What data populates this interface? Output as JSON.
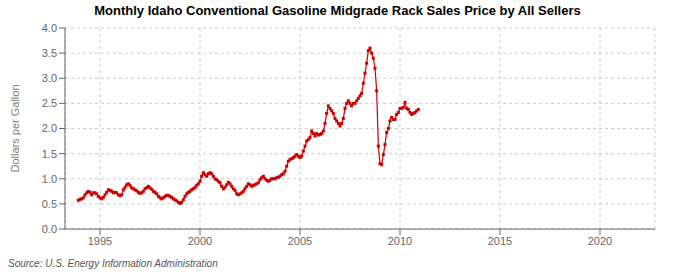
{
  "chart_data": {
    "type": "line",
    "title": "Monthly Idaho Conventional Gasoline Midgrade Rack Sales Price by All Sellers",
    "ylabel": "Dollars per Gallon",
    "annotations": [
      "Source: U.S. Energy Information Administration"
    ],
    "color": "#cc0000",
    "marker": "square",
    "grid": true,
    "xlim": [
      1993.25,
      2022.75
    ],
    "xticks": [
      1995,
      2000,
      2005,
      2010,
      2015,
      2020
    ],
    "ylim": [
      0.0,
      4.0
    ],
    "yticks": [
      {
        "value": 0.0,
        "label": "0.0"
      },
      0.5,
      {
        "value": 1.0,
        "label": "1.0"
      },
      1.5,
      {
        "value": 2.0,
        "label": "2.0"
      },
      2.5,
      {
        "value": 3.0,
        "label": "3.0"
      },
      3.5,
      {
        "value": 4.0,
        "label": "4.0"
      }
    ],
    "x": [
      1993.917,
      1994.0,
      1994.083,
      1994.167,
      1994.25,
      1994.333,
      1994.417,
      1994.5,
      1994.583,
      1994.667,
      1994.75,
      1994.833,
      1994.917,
      1995.0,
      1995.083,
      1995.167,
      1995.25,
      1995.333,
      1995.417,
      1995.5,
      1995.583,
      1995.667,
      1995.75,
      1995.833,
      1995.917,
      1996.0,
      1996.083,
      1996.167,
      1996.25,
      1996.333,
      1996.417,
      1996.5,
      1996.583,
      1996.667,
      1996.75,
      1996.833,
      1996.917,
      1997.0,
      1997.083,
      1997.167,
      1997.25,
      1997.333,
      1997.417,
      1997.5,
      1997.583,
      1997.667,
      1997.75,
      1997.833,
      1997.917,
      1998.0,
      1998.083,
      1998.167,
      1998.25,
      1998.333,
      1998.417,
      1998.5,
      1998.583,
      1998.667,
      1998.75,
      1998.833,
      1998.917,
      1999.0,
      1999.083,
      1999.167,
      1999.25,
      1999.333,
      1999.417,
      1999.5,
      1999.583,
      1999.667,
      1999.75,
      1999.833,
      1999.917,
      2000.0,
      2000.083,
      2000.167,
      2000.25,
      2000.333,
      2000.417,
      2000.5,
      2000.583,
      2000.667,
      2000.75,
      2000.833,
      2000.917,
      2001.0,
      2001.083,
      2001.167,
      2001.25,
      2001.333,
      2001.417,
      2001.5,
      2001.583,
      2001.667,
      2001.75,
      2001.833,
      2001.917,
      2002.0,
      2002.083,
      2002.167,
      2002.25,
      2002.333,
      2002.417,
      2002.5,
      2002.583,
      2002.667,
      2002.75,
      2002.833,
      2002.917,
      2003.0,
      2003.083,
      2003.167,
      2003.25,
      2003.333,
      2003.417,
      2003.5,
      2003.583,
      2003.667,
      2003.75,
      2003.833,
      2003.917,
      2004.0,
      2004.083,
      2004.167,
      2004.25,
      2004.333,
      2004.417,
      2004.5,
      2004.583,
      2004.667,
      2004.75,
      2004.833,
      2004.917,
      2005.0,
      2005.083,
      2005.167,
      2005.25,
      2005.333,
      2005.417,
      2005.5,
      2005.583,
      2005.667,
      2005.75,
      2005.833,
      2005.917,
      2006.0,
      2006.083,
      2006.167,
      2006.25,
      2006.333,
      2006.417,
      2006.5,
      2006.583,
      2006.667,
      2006.75,
      2006.833,
      2006.917,
      2007.0,
      2007.083,
      2007.167,
      2007.25,
      2007.333,
      2007.417,
      2007.5,
      2007.583,
      2007.667,
      2007.75,
      2007.833,
      2007.917,
      2008.0,
      2008.083,
      2008.167,
      2008.25,
      2008.333,
      2008.417,
      2008.5,
      2008.583,
      2008.667,
      2008.75,
      2008.833,
      2008.917,
      2009.0,
      2009.083,
      2009.167,
      2009.25,
      2009.333,
      2009.417,
      2009.5,
      2009.583,
      2009.667,
      2009.75,
      2009.833,
      2009.917,
      2010.0,
      2010.083,
      2010.167,
      2010.25,
      2010.333,
      2010.417,
      2010.5,
      2010.583,
      2010.667,
      2010.75,
      2010.833,
      2010.917
    ],
    "values": [
      0.57,
      0.59,
      0.6,
      0.62,
      0.68,
      0.72,
      0.75,
      0.73,
      0.68,
      0.72,
      0.72,
      0.7,
      0.65,
      0.62,
      0.6,
      0.63,
      0.68,
      0.73,
      0.78,
      0.77,
      0.75,
      0.72,
      0.73,
      0.72,
      0.68,
      0.66,
      0.68,
      0.78,
      0.83,
      0.88,
      0.9,
      0.87,
      0.82,
      0.8,
      0.78,
      0.76,
      0.73,
      0.71,
      0.72,
      0.75,
      0.8,
      0.82,
      0.85,
      0.82,
      0.79,
      0.75,
      0.73,
      0.7,
      0.65,
      0.62,
      0.6,
      0.62,
      0.65,
      0.67,
      0.67,
      0.65,
      0.63,
      0.6,
      0.58,
      0.56,
      0.53,
      0.51,
      0.53,
      0.58,
      0.65,
      0.7,
      0.73,
      0.75,
      0.78,
      0.8,
      0.83,
      0.87,
      0.9,
      0.95,
      1.05,
      1.12,
      1.08,
      1.05,
      1.1,
      1.12,
      1.1,
      1.05,
      1.0,
      0.98,
      0.95,
      0.92,
      0.85,
      0.8,
      0.83,
      0.88,
      0.93,
      0.9,
      0.85,
      0.8,
      0.77,
      0.7,
      0.68,
      0.7,
      0.72,
      0.75,
      0.8,
      0.85,
      0.9,
      0.88,
      0.85,
      0.87,
      0.88,
      0.9,
      0.92,
      0.98,
      1.02,
      1.05,
      1.0,
      0.97,
      0.95,
      0.97,
      1.0,
      1.0,
      1.0,
      1.02,
      1.03,
      1.05,
      1.08,
      1.1,
      1.15,
      1.25,
      1.35,
      1.38,
      1.4,
      1.42,
      1.45,
      1.48,
      1.45,
      1.42,
      1.45,
      1.55,
      1.65,
      1.75,
      1.78,
      1.82,
      1.95,
      1.9,
      1.85,
      1.9,
      1.87,
      1.88,
      1.9,
      1.95,
      2.1,
      2.3,
      2.45,
      2.4,
      2.35,
      2.3,
      2.2,
      2.15,
      2.1,
      2.05,
      2.1,
      2.2,
      2.4,
      2.5,
      2.55,
      2.5,
      2.45,
      2.5,
      2.5,
      2.55,
      2.6,
      2.65,
      2.7,
      2.9,
      3.1,
      3.3,
      3.55,
      3.6,
      3.5,
      3.4,
      3.2,
      2.75,
      1.65,
      1.3,
      1.28,
      1.48,
      1.68,
      1.92,
      2.0,
      2.15,
      2.22,
      2.18,
      2.18,
      2.28,
      2.32,
      2.4,
      2.4,
      2.42,
      2.52,
      2.4,
      2.38,
      2.32,
      2.28,
      2.3,
      2.32,
      2.35,
      2.38
    ]
  }
}
